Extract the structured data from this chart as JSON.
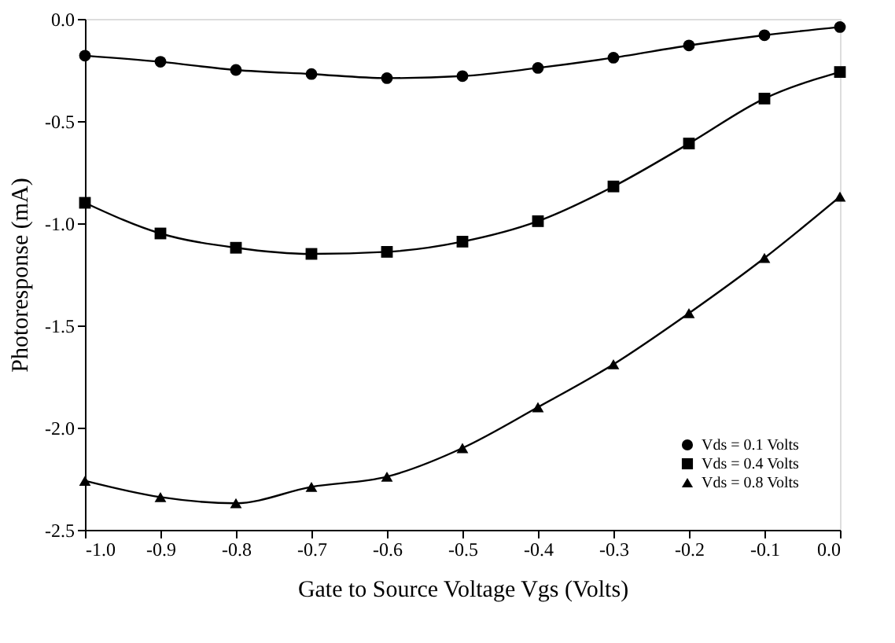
{
  "chart_data": {
    "type": "line",
    "xlabel": "Gate to Source Voltage Vgs (Volts)",
    "ylabel": "Photoresponse (mA)",
    "x": [
      -1.0,
      -0.9,
      -0.8,
      -0.7,
      -0.6,
      -0.5,
      -0.4,
      -0.3,
      -0.2,
      -0.1,
      0.0
    ],
    "series": [
      {
        "name": "Vds = 0.1 Volts",
        "color": "#000000",
        "marker": "circle",
        "values": [
          -0.18,
          -0.21,
          -0.25,
          -0.27,
          -0.29,
          -0.28,
          -0.24,
          -0.19,
          -0.13,
          -0.08,
          -0.04
        ]
      },
      {
        "name": "Vds = 0.4 Volts",
        "color": "#000000",
        "marker": "square",
        "values": [
          -0.9,
          -1.05,
          -1.12,
          -1.15,
          -1.14,
          -1.09,
          -0.99,
          -0.82,
          -0.61,
          -0.39,
          -0.26
        ]
      },
      {
        "name": "Vds = 0.8 Volts",
        "color": "#000000",
        "marker": "triangle",
        "values": [
          -2.26,
          -2.34,
          -2.37,
          -2.29,
          -2.24,
          -2.1,
          -1.9,
          -1.69,
          -1.44,
          -1.17,
          -0.87
        ]
      }
    ],
    "xlim": [
      -1.0,
      0.0
    ],
    "xticks": [
      {
        "value": -1.0,
        "label": "-1.0"
      },
      -0.9,
      -0.8,
      -0.7,
      -0.6,
      -0.5,
      -0.4,
      -0.3,
      -0.2,
      -0.1,
      {
        "value": 0.0,
        "label": "0.0"
      }
    ],
    "ylim": [
      -2.5,
      0.0
    ],
    "yticks": [
      {
        "value": -2.5,
        "label": "-2.5"
      },
      {
        "value": -2.0,
        "label": "-2.0"
      },
      {
        "value": -1.5,
        "label": "-1.5"
      },
      {
        "value": -1.0,
        "label": "-1.0"
      },
      {
        "value": -0.5,
        "label": "-0.5"
      },
      {
        "value": 0.0,
        "label": "0.0"
      }
    ],
    "grid": false,
    "legend": "bottom right",
    "line_style": "solid"
  }
}
